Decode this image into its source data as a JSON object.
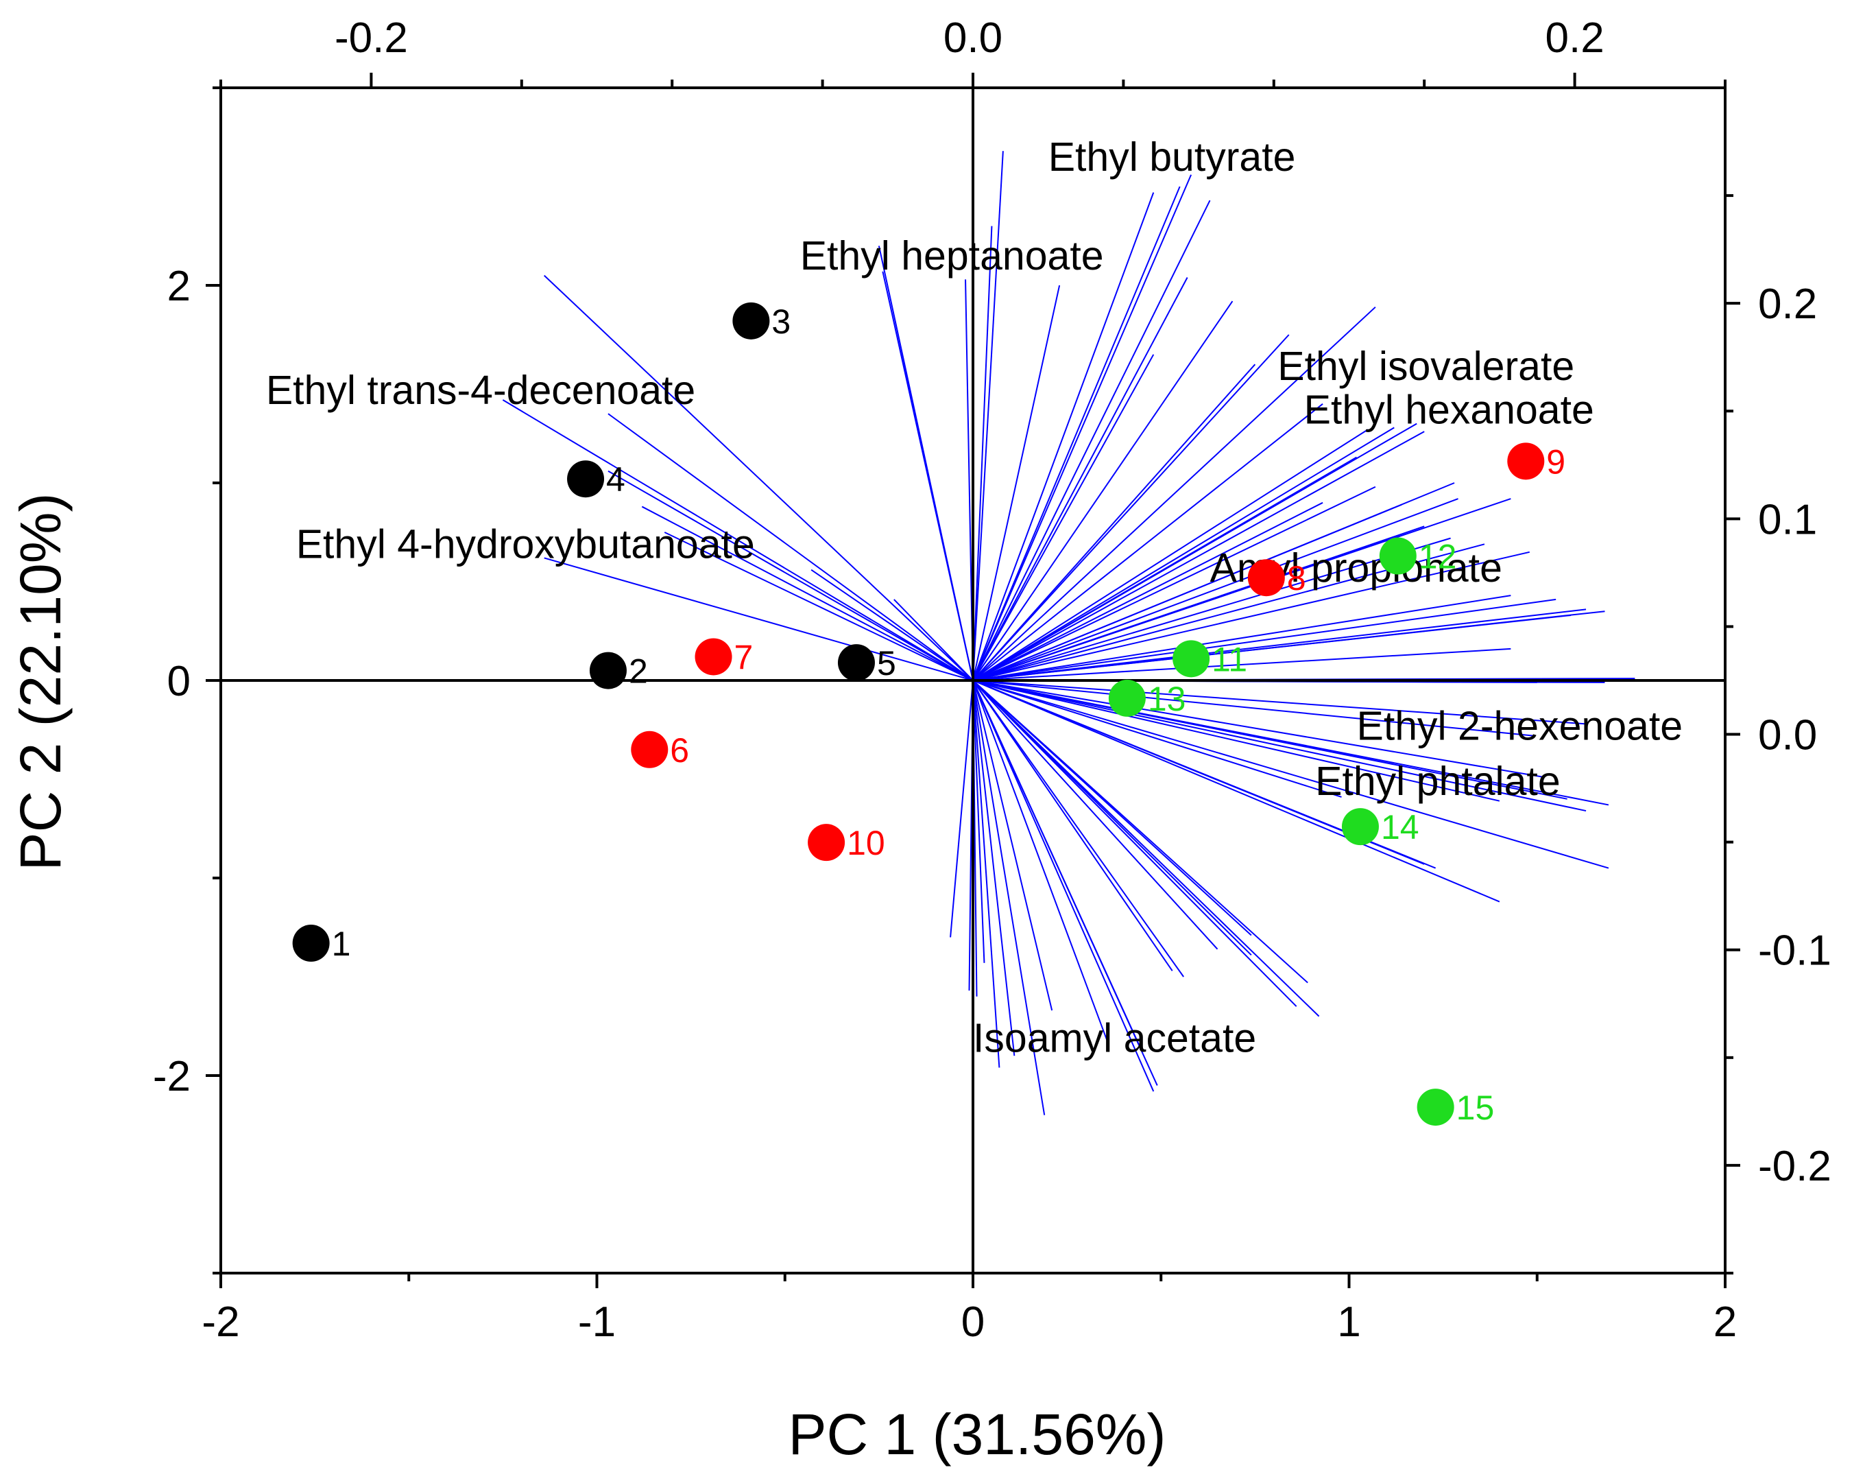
{
  "colors": {
    "group1": "#000000",
    "group2": "#ff0000",
    "group3": "#1fdc1f",
    "loading": "#0000ff"
  },
  "chart_data": {
    "type": "scatter",
    "subtype": "PCA biplot",
    "xlabel": "PC 1 (31.56%)",
    "ylabel": "PC 2 (22.10%)",
    "xlim": [
      -2,
      2
    ],
    "ylim": [
      -3,
      3
    ],
    "x_ticks": [
      "-2",
      "-1",
      "0",
      "1",
      "2"
    ],
    "y_ticks": [
      "-2",
      "0",
      "2"
    ],
    "top_axis": {
      "lim": [
        -0.25,
        0.25
      ],
      "ticks": [
        "-0.2",
        "0.0",
        "0.2"
      ]
    },
    "right_axis": {
      "lim": [
        -0.25,
        0.3
      ],
      "ticks": [
        "-0.2",
        "-0.1",
        "0.0",
        "0.1",
        "0.2"
      ]
    },
    "grid": false,
    "scores": [
      {
        "id": "1",
        "x": -1.76,
        "y": -1.33,
        "group": "group1"
      },
      {
        "id": "2",
        "x": -0.97,
        "y": 0.05,
        "group": "group1"
      },
      {
        "id": "3",
        "x": -0.59,
        "y": 1.82,
        "group": "group1"
      },
      {
        "id": "4",
        "x": -1.03,
        "y": 1.02,
        "group": "group1"
      },
      {
        "id": "5",
        "x": -0.31,
        "y": 0.09,
        "group": "group1"
      },
      {
        "id": "6",
        "x": -0.86,
        "y": -0.35,
        "group": "group2"
      },
      {
        "id": "7",
        "x": -0.69,
        "y": 0.12,
        "group": "group2"
      },
      {
        "id": "8",
        "x": 0.78,
        "y": 0.52,
        "group": "group2"
      },
      {
        "id": "9",
        "x": 1.47,
        "y": 1.11,
        "group": "group2"
      },
      {
        "id": "10",
        "x": -0.39,
        "y": -0.82,
        "group": "group2"
      },
      {
        "id": "11",
        "x": 0.58,
        "y": 0.11,
        "group": "group3"
      },
      {
        "id": "12",
        "x": 1.13,
        "y": 0.63,
        "group": "group3"
      },
      {
        "id": "13",
        "x": 0.41,
        "y": -0.09,
        "group": "group3"
      },
      {
        "id": "14",
        "x": 1.03,
        "y": -0.74,
        "group": "group3"
      },
      {
        "id": "15",
        "x": 1.23,
        "y": -2.16,
        "group": "group3"
      }
    ],
    "loading_labels": [
      {
        "text": "Ethyl butyrate",
        "x": 0.2,
        "y": 2.58
      },
      {
        "text": "Ethyl heptanoate",
        "x": -0.46,
        "y": 2.08
      },
      {
        "text": "Ethyl trans-4-decenoate",
        "x": -1.88,
        "y": 1.4
      },
      {
        "text": "Ethyl 4-hydroxybutanoate",
        "x": -1.8,
        "y": 0.62
      },
      {
        "text": "Ethyl isovalerate",
        "x": 0.81,
        "y": 1.52
      },
      {
        "text": "Ethyl hexanoate",
        "x": 0.88,
        "y": 1.3
      },
      {
        "text": "Amyl propionate",
        "x": 0.63,
        "y": 0.5
      },
      {
        "text": "Ethyl 2-hexenoate",
        "x": 1.02,
        "y": -0.3
      },
      {
        "text": "Ethyl phtalate",
        "x": 0.91,
        "y": -0.58
      },
      {
        "text": "Isoamyl acetate",
        "x": 0.0,
        "y": -1.88
      }
    ],
    "loadings": [
      [
        0.08,
        2.68
      ],
      [
        -0.02,
        2.03
      ],
      [
        0.05,
        2.3
      ],
      [
        -0.24,
        2.07
      ],
      [
        -0.25,
        2.2
      ],
      [
        -1.14,
        2.05
      ],
      [
        -0.97,
        1.35
      ],
      [
        -1.25,
        1.42
      ],
      [
        -0.97,
        1.06
      ],
      [
        -0.88,
        0.88
      ],
      [
        -0.82,
        0.75
      ],
      [
        -1.14,
        0.62
      ],
      [
        -0.43,
        0.56
      ],
      [
        -0.21,
        0.41
      ],
      [
        0.23,
        2.0
      ],
      [
        0.48,
        2.47
      ],
      [
        0.55,
        2.5
      ],
      [
        0.58,
        2.56
      ],
      [
        0.63,
        2.43
      ],
      [
        0.57,
        2.04
      ],
      [
        0.48,
        1.65
      ],
      [
        0.69,
        1.92
      ],
      [
        0.75,
        1.6
      ],
      [
        0.84,
        1.75
      ],
      [
        1.07,
        1.89
      ],
      [
        0.93,
        1.4
      ],
      [
        1.05,
        1.27
      ],
      [
        1.02,
        1.13
      ],
      [
        1.12,
        1.28
      ],
      [
        1.18,
        1.3
      ],
      [
        1.2,
        1.26
      ],
      [
        0.93,
        0.9
      ],
      [
        1.07,
        0.98
      ],
      [
        1.28,
        1.0
      ],
      [
        1.14,
        0.89
      ],
      [
        1.29,
        0.92
      ],
      [
        1.2,
        0.78
      ],
      [
        1.27,
        0.72
      ],
      [
        1.36,
        0.69
      ],
      [
        1.43,
        0.92
      ],
      [
        1.48,
        0.65
      ],
      [
        1.43,
        0.43
      ],
      [
        1.55,
        0.41
      ],
      [
        1.59,
        0.33
      ],
      [
        1.63,
        0.36
      ],
      [
        1.68,
        0.35
      ],
      [
        1.43,
        0.16
      ],
      [
        1.76,
        0.01
      ],
      [
        1.5,
        -0.01
      ],
      [
        1.61,
        0.0
      ],
      [
        1.68,
        -0.01
      ],
      [
        1.63,
        -0.22
      ],
      [
        1.49,
        -0.28
      ],
      [
        1.52,
        -0.49
      ],
      [
        1.58,
        -0.6
      ],
      [
        1.63,
        -0.66
      ],
      [
        1.69,
        -0.63
      ],
      [
        1.4,
        -0.61
      ],
      [
        1.69,
        -0.95
      ],
      [
        1.4,
        -1.12
      ],
      [
        1.2,
        -0.93
      ],
      [
        1.23,
        -0.95
      ],
      [
        0.98,
        -0.59
      ],
      [
        0.74,
        -1.29
      ],
      [
        0.65,
        -1.36
      ],
      [
        0.53,
        -1.47
      ],
      [
        0.56,
        -1.5
      ],
      [
        0.86,
        -1.65
      ],
      [
        0.92,
        -1.7
      ],
      [
        0.89,
        -1.53
      ],
      [
        0.74,
        -1.39
      ],
      [
        0.49,
        -2.05
      ],
      [
        0.48,
        -2.08
      ],
      [
        0.45,
        -1.88
      ],
      [
        0.36,
        -1.84
      ],
      [
        0.21,
        -1.67
      ],
      [
        0.11,
        -1.9
      ],
      [
        0.19,
        -2.2
      ],
      [
        0.07,
        -1.96
      ],
      [
        0.01,
        -1.6
      ],
      [
        -0.01,
        -1.57
      ],
      [
        0.03,
        -1.43
      ],
      [
        -0.06,
        -1.3
      ]
    ]
  }
}
